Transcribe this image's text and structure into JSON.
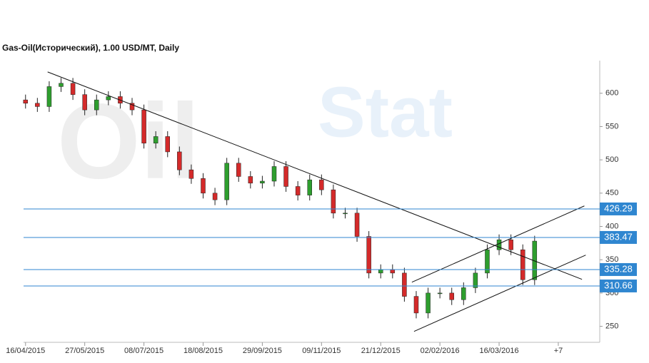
{
  "chart_data": {
    "type": "candlestick",
    "title": "Gas-Oil(Исторический), 1.00 USD/MT, Daily",
    "watermark": [
      "Oil",
      "Stat"
    ],
    "x": [
      0,
      6,
      12,
      18,
      24,
      30,
      36,
      42,
      48,
      54,
      60,
      66,
      72,
      78,
      84,
      90,
      96,
      102,
      108,
      114,
      120,
      126,
      132,
      138,
      144,
      150,
      156,
      162,
      168,
      174,
      180,
      186,
      192,
      198,
      204,
      210,
      216,
      222,
      228,
      234,
      240,
      246,
      252,
      258
    ],
    "open": [
      590,
      585,
      580,
      610,
      615,
      598,
      575,
      590,
      595,
      585,
      575,
      525,
      535,
      512,
      485,
      472,
      450,
      440,
      495,
      475,
      465,
      468,
      490,
      460,
      447,
      470,
      455,
      420,
      420,
      385,
      330,
      335,
      330,
      295,
      270,
      300,
      300,
      290,
      308,
      330,
      365,
      380,
      365,
      320
    ],
    "high": [
      598,
      593,
      618,
      623,
      623,
      606,
      598,
      603,
      603,
      593,
      583,
      543,
      543,
      520,
      493,
      480,
      458,
      503,
      503,
      483,
      476,
      498,
      498,
      468,
      478,
      478,
      463,
      428,
      428,
      393,
      343,
      343,
      338,
      303,
      308,
      308,
      308,
      316,
      338,
      373,
      388,
      388,
      373,
      386
    ],
    "low": [
      577,
      572,
      572,
      602,
      590,
      567,
      567,
      582,
      577,
      567,
      517,
      517,
      504,
      477,
      464,
      442,
      432,
      432,
      467,
      457,
      457,
      460,
      452,
      439,
      439,
      447,
      412,
      412,
      377,
      322,
      322,
      322,
      287,
      262,
      262,
      292,
      282,
      282,
      300,
      322,
      357,
      357,
      312,
      312
    ],
    "close": [
      585,
      580,
      610,
      615,
      598,
      575,
      590,
      595,
      585,
      575,
      525,
      535,
      512,
      485,
      472,
      450,
      440,
      495,
      475,
      465,
      468,
      490,
      460,
      447,
      470,
      455,
      420,
      420,
      385,
      330,
      335,
      330,
      295,
      270,
      300,
      300,
      290,
      308,
      330,
      365,
      380,
      365,
      320,
      378
    ],
    "up_color": "#2e9e2e",
    "down_color": "#d42a2a",
    "levels": [
      426.29,
      383.47,
      335.28,
      310.66
    ],
    "level_color": "#2f86d0",
    "trendlines": [
      {
        "x": [
          11.2,
          282
        ],
        "y": [
          632,
          320.6
        ]
      },
      {
        "x": [
          195.8,
          283.2
        ],
        "y": [
          316.3,
          430.8
        ]
      },
      {
        "x": [
          196.9,
          283.9
        ],
        "y": [
          242.4,
          357
        ]
      }
    ],
    "xlim": [
      -1,
      291
    ],
    "xticks": [
      {
        "value": 0,
        "label": "16/04/2015"
      },
      {
        "value": 30,
        "label": "27/05/2015"
      },
      {
        "value": 60,
        "label": "08/07/2015"
      },
      {
        "value": 90,
        "label": "18/08/2015"
      },
      {
        "value": 120,
        "label": "29/09/2015"
      },
      {
        "value": 150,
        "label": "09/11/2015"
      },
      {
        "value": 180,
        "label": "21/12/2015"
      },
      {
        "value": 210,
        "label": "02/02/2016"
      },
      {
        "value": 240,
        "label": "16/03/2016"
      },
      {
        "value": 270,
        "label": "+7"
      }
    ],
    "ylim": [
      226,
      649
    ],
    "yticks": [
      250,
      300,
      350,
      400,
      450,
      500,
      550,
      600
    ]
  }
}
